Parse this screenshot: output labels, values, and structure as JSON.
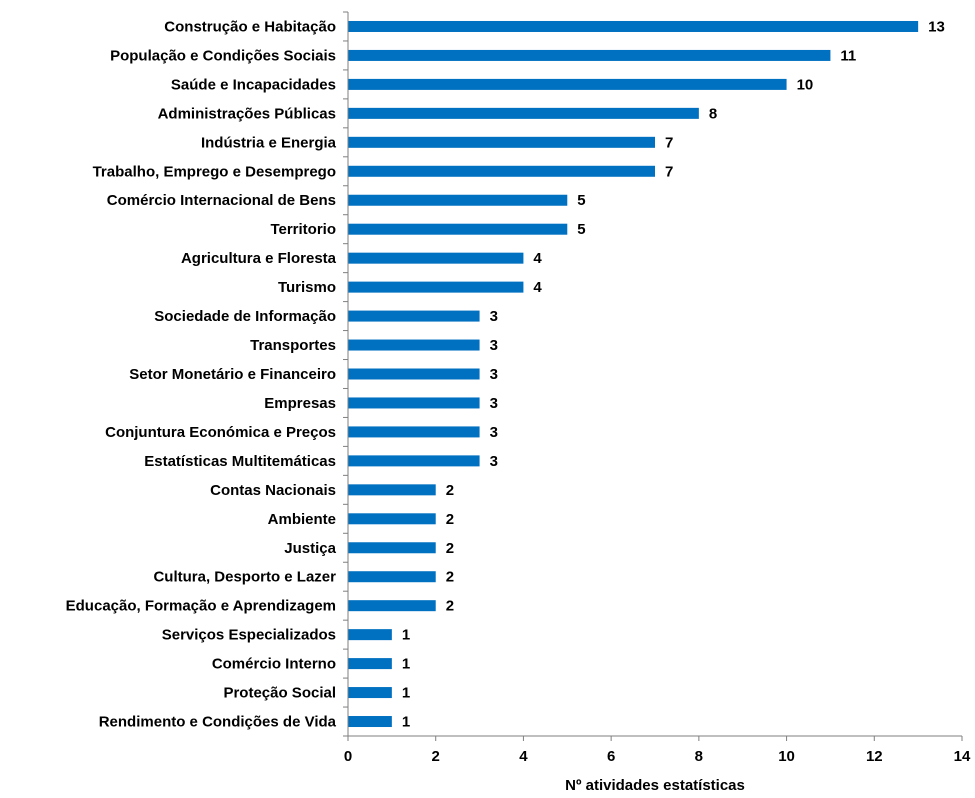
{
  "chart_data": {
    "type": "bar",
    "orientation": "horizontal",
    "categories": [
      "Construção e Habitação",
      "População e Condições Sociais",
      "Saúde e Incapacidades",
      "Administrações Públicas",
      "Indústria e Energia",
      "Trabalho, Emprego e Desemprego",
      "Comércio Internacional de Bens",
      "Territorio",
      "Agricultura e Floresta",
      "Turismo",
      "Sociedade de Informação",
      "Transportes",
      "Setor Monetário e Financeiro",
      "Empresas",
      "Conjuntura Económica e Preços",
      "Estatísticas Multitemáticas",
      "Contas Nacionais",
      "Ambiente",
      "Justiça",
      "Cultura, Desporto e Lazer",
      "Educação, Formação e Aprendizagem",
      "Serviços Especializados",
      "Comércio Interno",
      "Proteção Social",
      "Rendimento e Condições de Vida"
    ],
    "values": [
      13,
      11,
      10,
      8,
      7,
      7,
      5,
      5,
      4,
      4,
      3,
      3,
      3,
      3,
      3,
      3,
      2,
      2,
      2,
      2,
      2,
      1,
      1,
      1,
      1
    ],
    "xlabel": "Nº atividades  estatísticas",
    "ylabel": "",
    "xlim": [
      0,
      14
    ],
    "xticks": [
      0,
      2,
      4,
      6,
      8,
      10,
      12,
      14
    ],
    "grid": false,
    "legend": "none",
    "bar_color": "#0070C0"
  }
}
